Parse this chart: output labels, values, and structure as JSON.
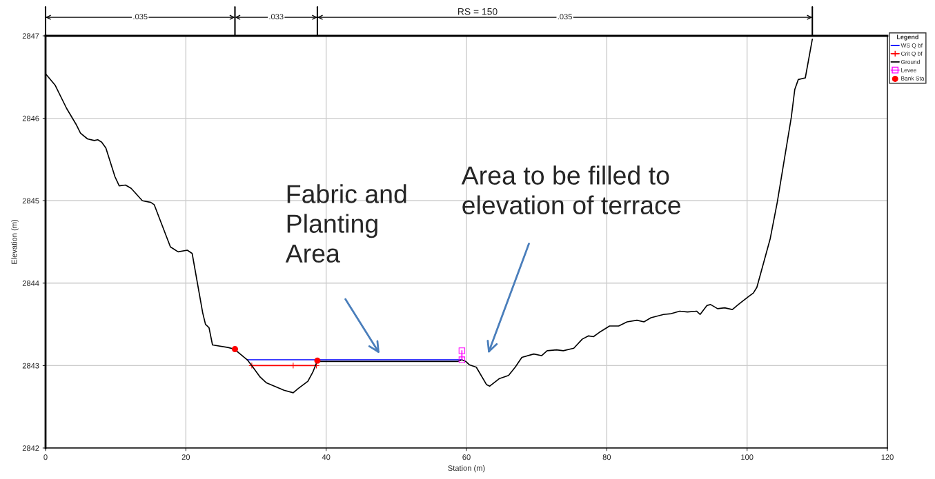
{
  "chart_data": {
    "type": "line",
    "title": "RS = 150",
    "xlabel": "Station (m)",
    "ylabel": "Elevation (m)",
    "legend_title": "Legend",
    "xlim": [
      0,
      120
    ],
    "ylim": [
      2842,
      2847
    ],
    "xticks": [
      0,
      20,
      40,
      60,
      80,
      100,
      120
    ],
    "yticks": [
      2842,
      2843,
      2844,
      2845,
      2846,
      2847
    ],
    "grid": true,
    "legend": "right",
    "series": [
      {
        "name": "WS Q bf",
        "color": "#0000ff",
        "marker": "none",
        "x": [
          28.75,
          59.35
        ],
        "values": [
          2843.07,
          2843.07
        ]
      },
      {
        "name": "Crit Q bf",
        "color": "#ff0000",
        "marker": "cross",
        "x": [
          29.4,
          35.3,
          38.6
        ],
        "values": [
          2843.0,
          2843.0,
          2843.0
        ]
      },
      {
        "name": "Ground",
        "color": "#000000",
        "marker": "none",
        "x": [
          0,
          1.38,
          3.0,
          4.33,
          4.98,
          5.97,
          6.95,
          7.44,
          8.0,
          8.6,
          9.9,
          10.5,
          11.4,
          12.2,
          13.8,
          15.0,
          15.5,
          17.8,
          18.9,
          20.2,
          20.9,
          22.4,
          22.8,
          23.3,
          23.8,
          26.0,
          26.9,
          28.75,
          29.4,
          30.6,
          31.5,
          34.0,
          35.3,
          36.0,
          37.4,
          38.1,
          38.75,
          39.1,
          58.75,
          59.35,
          59.9,
          60.4,
          61.4,
          62.85,
          63.3,
          64.65,
          66.0,
          66.95,
          67.9,
          69.6,
          70.7,
          71.5,
          72.85,
          73.8,
          75.3,
          76.5,
          77.4,
          78.1,
          78.9,
          80.4,
          81.7,
          82.9,
          84.3,
          85.3,
          86.3,
          88.1,
          89.2,
          90.4,
          91.5,
          92.8,
          93.3,
          94.3,
          94.8,
          95.8,
          96.8,
          97.9,
          98.75,
          100.1,
          100.9,
          101.4,
          103.3,
          104.3,
          106.3,
          106.8,
          107.3,
          108.3,
          109.3
        ],
        "values": [
          2846.54,
          2846.4,
          2846.12,
          2845.93,
          2845.82,
          2845.75,
          2845.73,
          2845.74,
          2845.71,
          2845.64,
          2845.29,
          2845.18,
          2845.19,
          2845.15,
          2845.0,
          2844.98,
          2844.95,
          2844.44,
          2844.38,
          2844.4,
          2844.36,
          2843.64,
          2843.5,
          2843.46,
          2843.25,
          2843.22,
          2843.2,
          2843.07,
          2843.0,
          2842.86,
          2842.79,
          2842.7,
          2842.67,
          2842.72,
          2842.81,
          2842.92,
          2843.06,
          2843.05,
          2843.05,
          2843.07,
          2843.05,
          2843.01,
          2842.98,
          2842.77,
          2842.75,
          2842.84,
          2842.88,
          2842.98,
          2843.1,
          2843.14,
          2843.12,
          2843.18,
          2843.19,
          2843.18,
          2843.21,
          2843.32,
          2843.36,
          2843.35,
          2843.4,
          2843.48,
          2843.48,
          2843.53,
          2843.55,
          2843.53,
          2843.58,
          2843.62,
          2843.63,
          2843.66,
          2843.65,
          2843.66,
          2843.62,
          2843.73,
          2843.74,
          2843.69,
          2843.7,
          2843.68,
          2843.74,
          2843.83,
          2843.88,
          2843.95,
          2844.54,
          2844.98,
          2846.01,
          2846.35,
          2846.47,
          2846.49,
          2846.96
        ]
      },
      {
        "name": "Levee",
        "color": "#ff00ff",
        "marker": "square",
        "x": [
          59.35,
          59.35
        ],
        "values": [
          2843.07,
          2843.18
        ]
      },
      {
        "name": "Bank Sta",
        "type": "scatter",
        "color": "#ff0000",
        "marker": "circle",
        "x": [
          27.0,
          38.75
        ],
        "values": [
          2843.2,
          2843.06
        ]
      }
    ],
    "annotations": [
      ".035",
      ".033",
      ".035",
      "Fabric and\nPlanting\nArea",
      "Area to be filled to\nelevation of terrace"
    ]
  }
}
